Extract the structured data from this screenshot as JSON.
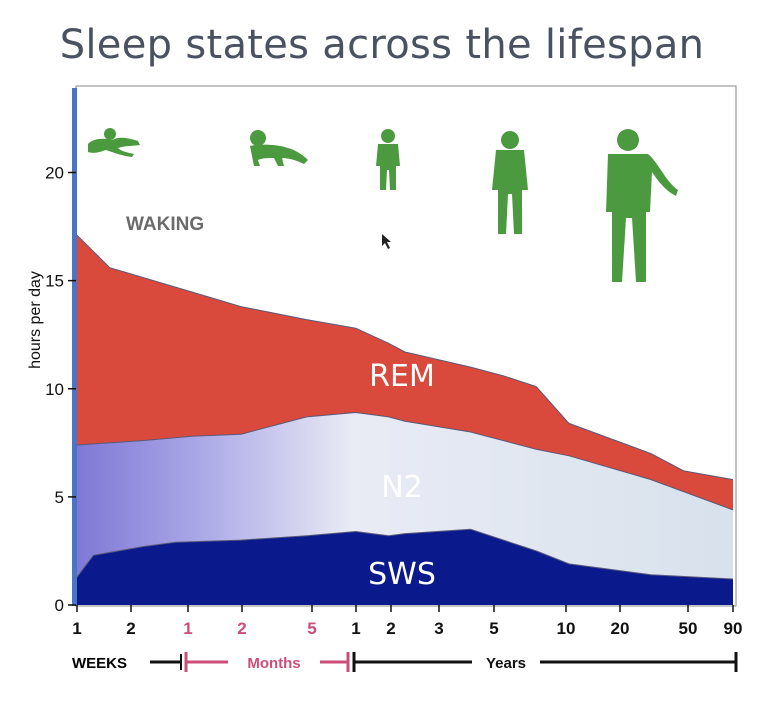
{
  "chart_data": {
    "type": "area",
    "title": "Sleep states across the lifespan",
    "ylabel": "hours per day",
    "ylim": [
      0,
      24
    ],
    "yticks": [
      "0",
      "5",
      "10",
      "15",
      "20"
    ],
    "x_tick_labels": [
      {
        "label": "1",
        "unit": "weeks"
      },
      {
        "label": "2",
        "unit": "weeks"
      },
      {
        "label": "1",
        "unit": "months"
      },
      {
        "label": "2",
        "unit": "months"
      },
      {
        "label": "5",
        "unit": "months"
      },
      {
        "label": "1",
        "unit": "years"
      },
      {
        "label": "2",
        "unit": "years"
      },
      {
        "label": "3",
        "unit": "years"
      },
      {
        "label": "5",
        "unit": "years"
      },
      {
        "label": "10",
        "unit": "years"
      },
      {
        "label": "20",
        "unit": "years"
      },
      {
        "label": "50",
        "unit": "years"
      },
      {
        "label": "90",
        "unit": "years"
      }
    ],
    "x_scale_groups": [
      {
        "label": "WEEKS",
        "color": "#111111"
      },
      {
        "label": "Months",
        "color": "#cc4d7a"
      },
      {
        "label": "Years",
        "color": "#111111"
      }
    ],
    "regions": [
      "WAKING",
      "REM",
      "N2",
      "SWS"
    ],
    "series": [
      {
        "name": "SWS",
        "color": "#0a1a8c",
        "x": [
          0,
          0.05,
          0.2,
          0.3,
          0.5,
          0.7,
          0.85,
          0.95,
          1.0,
          1.2,
          1.4,
          1.5,
          1.75,
          2.0
        ],
        "values": [
          1.3,
          2.3,
          2.7,
          2.9,
          3.0,
          3.2,
          3.4,
          3.2,
          3.3,
          3.5,
          2.5,
          1.9,
          1.4,
          1.2
        ]
      },
      {
        "name": "N2",
        "color": "#d8e2ec",
        "x": [
          0,
          0.2,
          0.35,
          0.5,
          0.7,
          0.85,
          0.95,
          1.0,
          1.2,
          1.4,
          1.5,
          1.75,
          2.0
        ],
        "values": [
          7.4,
          7.6,
          7.8,
          7.9,
          8.7,
          8.9,
          8.7,
          8.5,
          8.0,
          7.2,
          6.9,
          5.8,
          4.4
        ]
      },
      {
        "name": "REM",
        "color": "#d9493c",
        "x": [
          0,
          0.1,
          0.3,
          0.5,
          0.7,
          0.85,
          0.95,
          1.0,
          1.2,
          1.3,
          1.4,
          1.5,
          1.75,
          1.85,
          2.0
        ],
        "values": [
          17.1,
          15.6,
          14.7,
          13.8,
          13.2,
          12.8,
          12.1,
          11.7,
          11.0,
          10.6,
          10.1,
          8.4,
          7.0,
          6.2,
          5.8
        ]
      }
    ],
    "annotations": [
      {
        "text": "WAKING"
      },
      {
        "text": "REM"
      },
      {
        "text": "N2"
      },
      {
        "text": "SWS"
      }
    ],
    "grid": false,
    "legend": "none"
  }
}
